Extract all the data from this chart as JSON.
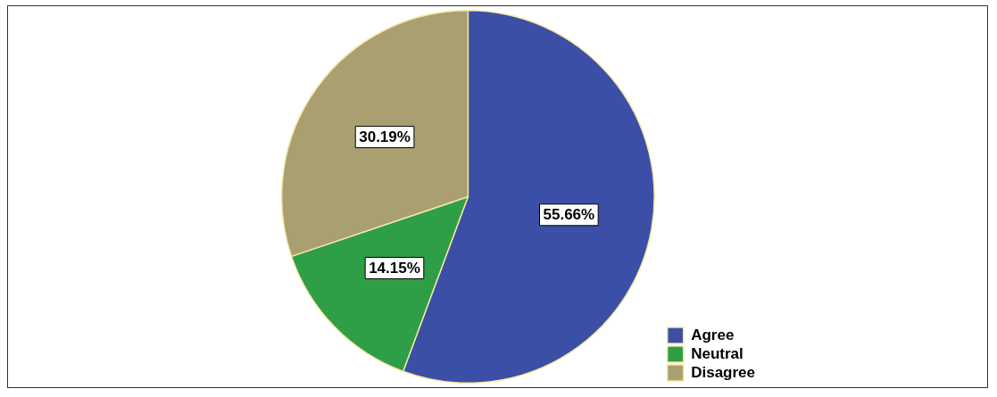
{
  "chart_data": {
    "type": "pie",
    "categories": [
      "Agree",
      "Neutral",
      "Disagree"
    ],
    "values": [
      55.66,
      14.15,
      30.19
    ],
    "colors": [
      "#3b4fa6",
      "#2e9e47",
      "#a99f70"
    ],
    "value_labels": [
      "55.66%",
      "14.15%",
      "30.19%"
    ],
    "legend": "bottom right"
  }
}
